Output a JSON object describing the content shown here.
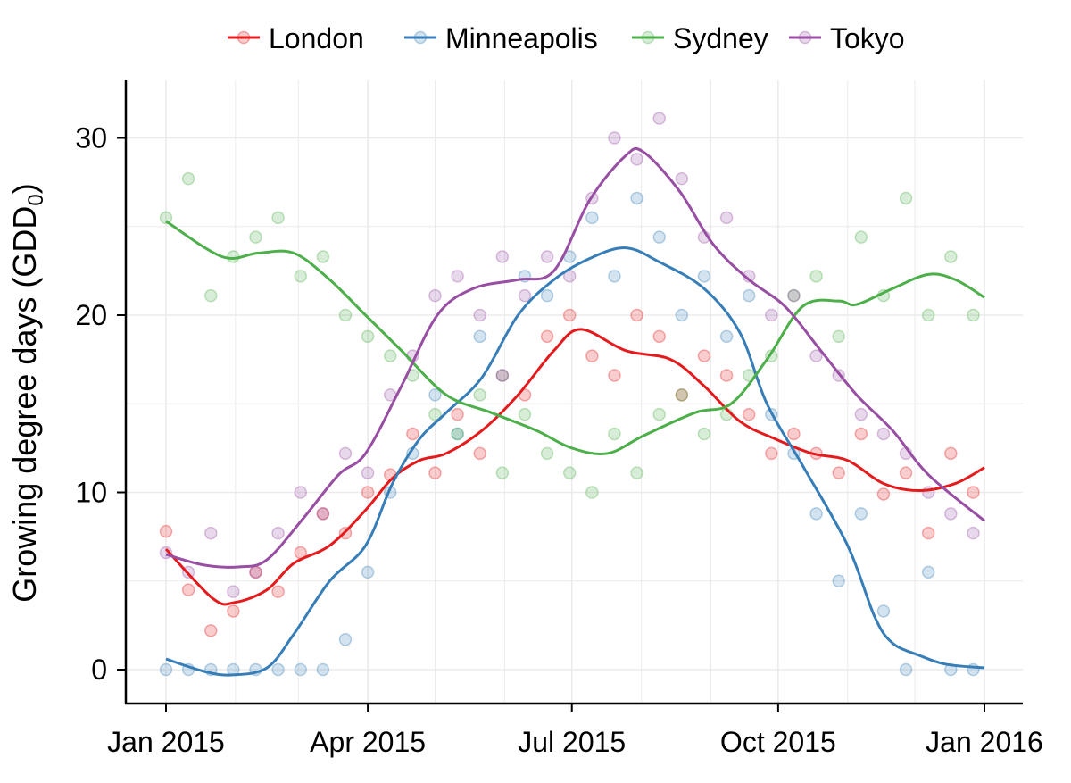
{
  "chart_data": {
    "type": "scatter",
    "title": "",
    "xlabel": "",
    "ylabel": "Growing degree days (GDD",
    "ylabel_subscript": "0",
    "ylabel_close": ")",
    "ylim": [
      -2,
      33
    ],
    "xlim": [
      "2014-12-20",
      "2016-01-12"
    ],
    "grid": true,
    "legend_position": "top",
    "x_ticks": [
      {
        "date": "2015-01-01",
        "label": "Jan 2015"
      },
      {
        "date": "2015-04-01",
        "label": "Apr 2015"
      },
      {
        "date": "2015-07-01",
        "label": "Jul 2015"
      },
      {
        "date": "2015-10-01",
        "label": "Oct 2015"
      },
      {
        "date": "2016-01-01",
        "label": "Jan 2016"
      }
    ],
    "y_ticks": [
      0,
      10,
      20,
      30
    ],
    "scatter_dates": [
      "2015-01-01",
      "2015-01-11",
      "2015-01-21",
      "2015-01-31",
      "2015-02-10",
      "2015-02-20",
      "2015-03-02",
      "2015-03-12",
      "2015-03-22",
      "2015-04-01",
      "2015-04-11",
      "2015-04-21",
      "2015-05-01",
      "2015-05-11",
      "2015-05-21",
      "2015-05-31",
      "2015-06-10",
      "2015-06-20",
      "2015-06-30",
      "2015-07-10",
      "2015-07-20",
      "2015-07-30",
      "2015-08-09",
      "2015-08-19",
      "2015-08-29",
      "2015-09-08",
      "2015-09-18",
      "2015-09-28",
      "2015-10-08",
      "2015-10-18",
      "2015-10-28",
      "2015-11-07",
      "2015-11-17",
      "2015-11-27",
      "2015-12-07",
      "2015-12-17",
      "2015-12-27"
    ],
    "series": [
      {
        "name": "London",
        "color": "#e41a1c",
        "points": [
          7.8,
          4.5,
          2.2,
          3.3,
          5.5,
          4.4,
          6.6,
          8.8,
          7.7,
          10,
          11,
          13.3,
          11.1,
          14.4,
          12.2,
          16.6,
          15.5,
          18.8,
          20,
          17.7,
          16.6,
          20,
          18.8,
          15.5,
          17.7,
          16.6,
          14.4,
          12.2,
          13.3,
          12.2,
          11.1,
          13.3,
          9.9,
          11.1,
          7.7,
          12.2,
          10
        ],
        "smooth": [
          [
            "2015-01-01",
            6.8
          ],
          [
            "2015-01-22",
            4.0
          ],
          [
            "2015-02-01",
            3.8
          ],
          [
            "2015-02-15",
            4.5
          ],
          [
            "2015-02-27",
            6.0
          ],
          [
            "2015-03-15",
            7.0
          ],
          [
            "2015-03-31",
            9.0
          ],
          [
            "2015-04-12",
            10.8
          ],
          [
            "2015-04-24",
            11.8
          ],
          [
            "2015-05-06",
            12.2
          ],
          [
            "2015-05-22",
            13.5
          ],
          [
            "2015-06-07",
            15.5
          ],
          [
            "2015-06-23",
            18.0
          ],
          [
            "2015-07-05",
            19.2
          ],
          [
            "2015-07-25",
            18.0
          ],
          [
            "2015-08-14",
            17.5
          ],
          [
            "2015-08-29",
            16.0
          ],
          [
            "2015-09-14",
            14.0
          ],
          [
            "2015-09-30",
            13.0
          ],
          [
            "2015-10-16",
            12.2
          ],
          [
            "2015-11-01",
            11.8
          ],
          [
            "2015-11-17",
            10.5
          ],
          [
            "2015-12-03",
            10.1
          ],
          [
            "2015-12-19",
            10.5
          ],
          [
            "2016-01-01",
            11.4
          ]
        ]
      },
      {
        "name": "Minneapolis",
        "color": "#377eb8",
        "points": [
          0,
          0,
          0,
          0,
          0,
          0,
          0,
          0,
          1.7,
          5.5,
          10,
          12.2,
          15.5,
          13.3,
          18.8,
          16.6,
          22.2,
          21.1,
          23.3,
          25.5,
          22.2,
          26.6,
          24.4,
          20,
          22.2,
          18.8,
          21.1,
          14.4,
          12.2,
          8.8,
          5,
          8.8,
          3.3,
          0,
          5.5,
          0,
          0
        ],
        "smooth": [
          [
            "2015-01-01",
            0.6
          ],
          [
            "2015-01-18",
            -0.1
          ],
          [
            "2015-01-30",
            -0.3
          ],
          [
            "2015-02-15",
            0.1
          ],
          [
            "2015-02-27",
            2.0
          ],
          [
            "2015-03-15",
            5.0
          ],
          [
            "2015-03-31",
            7.0
          ],
          [
            "2015-04-12",
            10.5
          ],
          [
            "2015-04-24",
            13.0
          ],
          [
            "2015-05-06",
            14.5
          ],
          [
            "2015-05-22",
            16.5
          ],
          [
            "2015-06-07",
            20.0
          ],
          [
            "2015-06-23",
            22.0
          ],
          [
            "2015-07-09",
            23.2
          ],
          [
            "2015-07-25",
            23.8
          ],
          [
            "2015-08-09",
            23.0
          ],
          [
            "2015-08-29",
            21.5
          ],
          [
            "2015-09-14",
            19.0
          ],
          [
            "2015-09-26",
            15.0
          ],
          [
            "2015-10-12",
            11.5
          ],
          [
            "2015-11-01",
            7.0
          ],
          [
            "2015-11-13",
            3.0
          ],
          [
            "2015-11-21",
            1.5
          ],
          [
            "2015-12-03",
            0.8
          ],
          [
            "2015-12-15",
            0.3
          ],
          [
            "2016-01-01",
            0.1
          ]
        ]
      },
      {
        "name": "Sydney",
        "color": "#4daf4a",
        "points": [
          25.5,
          27.7,
          21.1,
          23.3,
          24.4,
          25.5,
          22.2,
          23.3,
          20,
          18.8,
          17.7,
          16.6,
          14.4,
          13.3,
          15.5,
          11.1,
          14.4,
          12.2,
          11.1,
          10,
          13.3,
          11.1,
          14.4,
          15.5,
          13.3,
          14.4,
          16.6,
          17.7,
          21.1,
          22.2,
          18.8,
          24.4,
          21.1,
          26.6,
          20,
          23.3,
          20
        ],
        "smooth": [
          [
            "2015-01-01",
            25.3
          ],
          [
            "2015-01-26",
            23.3
          ],
          [
            "2015-02-11",
            23.5
          ],
          [
            "2015-02-27",
            23.5
          ],
          [
            "2015-03-15",
            22.0
          ],
          [
            "2015-03-31",
            20.0
          ],
          [
            "2015-04-16",
            18.0
          ],
          [
            "2015-05-06",
            15.5
          ],
          [
            "2015-05-26",
            14.5
          ],
          [
            "2015-06-15",
            13.5
          ],
          [
            "2015-07-01",
            12.5
          ],
          [
            "2015-07-17",
            12.2
          ],
          [
            "2015-08-02",
            13.2
          ],
          [
            "2015-08-25",
            14.5
          ],
          [
            "2015-09-10",
            15.0
          ],
          [
            "2015-09-26",
            17.5
          ],
          [
            "2015-10-12",
            20.5
          ],
          [
            "2015-10-28",
            20.8
          ],
          [
            "2015-11-05",
            20.6
          ],
          [
            "2015-11-21",
            21.5
          ],
          [
            "2015-12-07",
            22.3
          ],
          [
            "2015-12-19",
            22.0
          ],
          [
            "2016-01-01",
            21.0
          ]
        ]
      },
      {
        "name": "Tokyo",
        "color": "#984ea3",
        "points": [
          6.6,
          5.5,
          7.7,
          4.4,
          5.5,
          7.7,
          10,
          8.8,
          12.2,
          11.1,
          15.5,
          17.7,
          21.1,
          22.2,
          20,
          23.3,
          21.1,
          23.3,
          22.2,
          26.6,
          30,
          28.8,
          31.1,
          27.7,
          24.4,
          25.5,
          22.2,
          20,
          21.1,
          17.7,
          16.6,
          14.4,
          13.3,
          12.2,
          10,
          8.8,
          7.7
        ],
        "smooth": [
          [
            "2015-01-01",
            6.5
          ],
          [
            "2015-01-18",
            5.9
          ],
          [
            "2015-02-03",
            5.8
          ],
          [
            "2015-02-15",
            6.2
          ],
          [
            "2015-03-03",
            8.5
          ],
          [
            "2015-03-19",
            11.0
          ],
          [
            "2015-03-31",
            12.2
          ],
          [
            "2015-04-16",
            16.0
          ],
          [
            "2015-05-02",
            20.0
          ],
          [
            "2015-05-18",
            21.5
          ],
          [
            "2015-06-07",
            22.0
          ],
          [
            "2015-06-23",
            22.5
          ],
          [
            "2015-07-09",
            26.5
          ],
          [
            "2015-07-25",
            29.0
          ],
          [
            "2015-08-02",
            29.2
          ],
          [
            "2015-08-18",
            27.0
          ],
          [
            "2015-09-02",
            24.0
          ],
          [
            "2015-09-18",
            22.0
          ],
          [
            "2015-10-04",
            20.5
          ],
          [
            "2015-10-20",
            18.0
          ],
          [
            "2015-11-05",
            15.5
          ],
          [
            "2015-11-21",
            13.5
          ],
          [
            "2015-12-07",
            11.0
          ],
          [
            "2016-01-01",
            8.4
          ]
        ]
      }
    ]
  }
}
